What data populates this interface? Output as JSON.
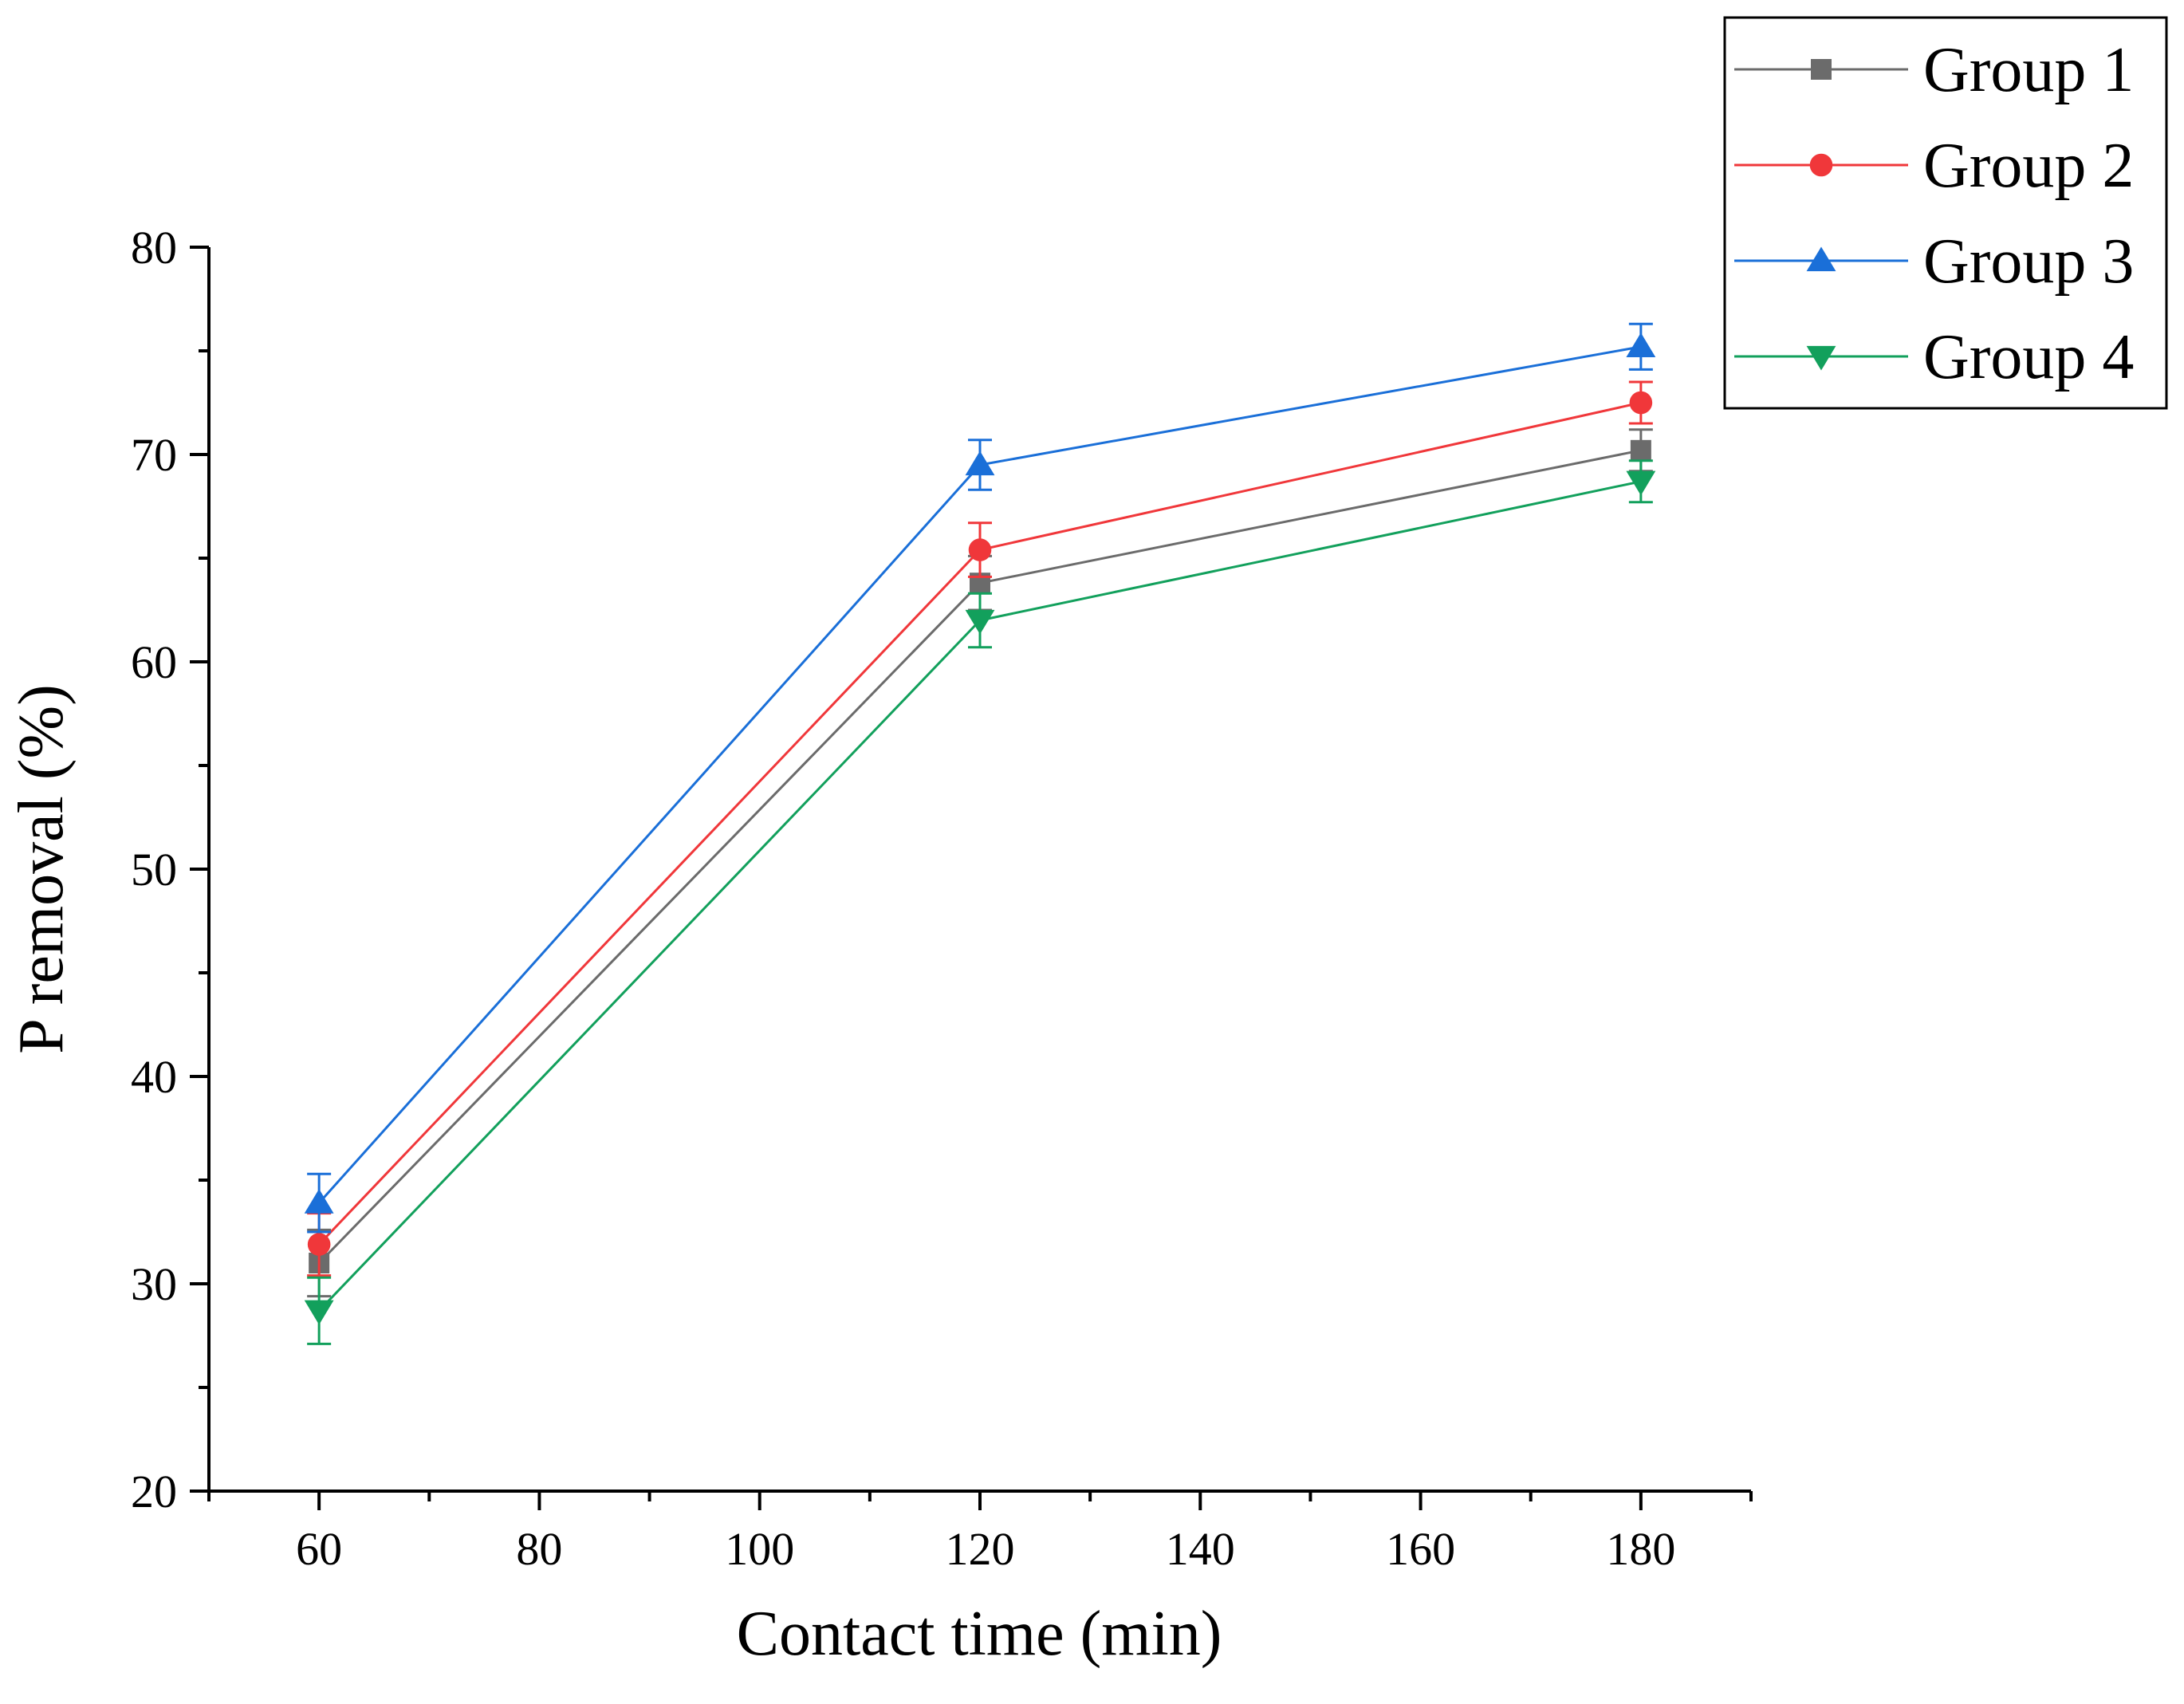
{
  "chart_data": {
    "type": "line",
    "title": "",
    "xlabel": "Contact time (min)",
    "ylabel": "P removal (%)",
    "x": [
      60,
      120,
      180
    ],
    "xlim": [
      50,
      190
    ],
    "ylim": [
      20,
      80
    ],
    "x_ticks": [
      60,
      80,
      100,
      120,
      140,
      160,
      180
    ],
    "y_ticks": [
      20,
      30,
      40,
      50,
      60,
      70,
      80
    ],
    "grid": false,
    "legend_position": "top-right",
    "series": [
      {
        "name": "Group 1",
        "color": "#6b6b6b",
        "marker": "square",
        "values": [
          31.0,
          63.8,
          70.2
        ],
        "errors": [
          1.6,
          1.3,
          1.0
        ]
      },
      {
        "name": "Group 2",
        "color": "#f0373a",
        "marker": "circle",
        "values": [
          31.9,
          65.4,
          72.5
        ],
        "errors": [
          1.5,
          1.3,
          1.0
        ]
      },
      {
        "name": "Group 3",
        "color": "#1a6fd8",
        "marker": "triangle-up",
        "values": [
          33.9,
          69.5,
          75.2
        ],
        "errors": [
          1.4,
          1.2,
          1.1
        ]
      },
      {
        "name": "Group 4",
        "color": "#12a05c",
        "marker": "triangle-down",
        "values": [
          28.7,
          62.0,
          68.7
        ],
        "errors": [
          1.6,
          1.3,
          1.0
        ]
      }
    ]
  }
}
